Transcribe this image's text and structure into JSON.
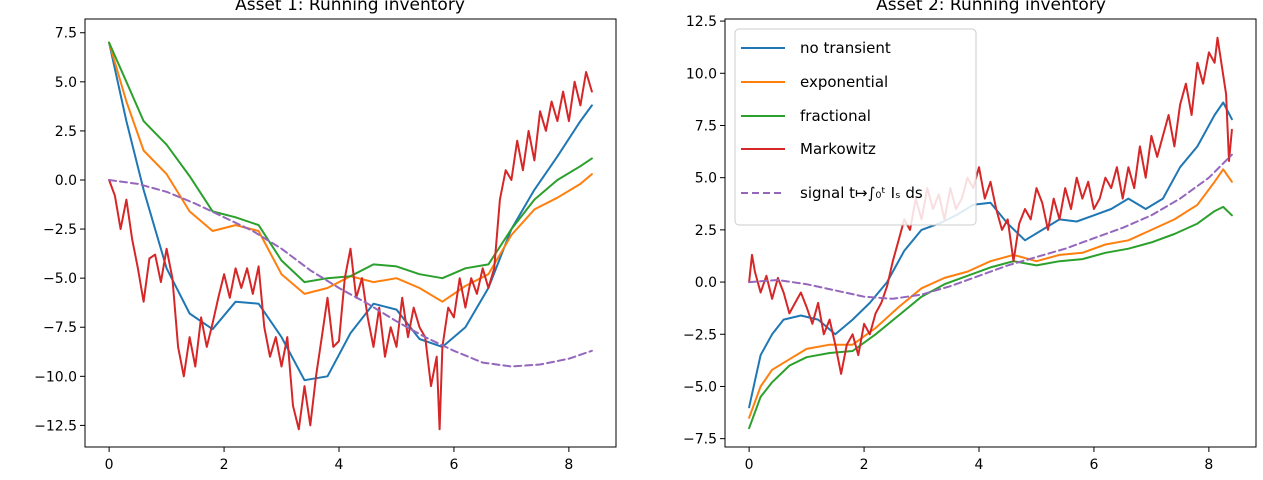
{
  "colors": {
    "no_transient": "#1f77b4",
    "exponential": "#ff7f0e",
    "fractional": "#2ca02c",
    "markowitz": "#d62728",
    "signal": "#9467bd"
  },
  "chart_data": [
    {
      "type": "line",
      "title": "Asset 1: Running inventory",
      "xlim": [
        -0.42,
        8.82
      ],
      "ylim": [
        -13.6,
        8.2
      ],
      "xticks": [
        0,
        2,
        4,
        6,
        8
      ],
      "xtick_labels": [
        "0",
        "2",
        "4",
        "6",
        "8"
      ],
      "yticks": [
        7.5,
        5.0,
        2.5,
        0.0,
        -2.5,
        -5.0,
        -7.5,
        -10.0,
        -12.5
      ],
      "ytick_labels": [
        "7.5",
        "5.0",
        "2.5",
        "0.0",
        "−2.5",
        "−5.0",
        "−7.5",
        "−10.0",
        "−12.5"
      ],
      "series": [
        {
          "name": "no transient",
          "color_key": "no_transient",
          "dashed": false,
          "x": [
            0,
            0.3,
            0.6,
            1.0,
            1.4,
            1.8,
            2.2,
            2.6,
            3.0,
            3.4,
            3.8,
            4.2,
            4.6,
            5.0,
            5.4,
            5.8,
            6.2,
            6.6,
            7.0,
            7.4,
            7.8,
            8.2,
            8.4
          ],
          "y": [
            7.0,
            3.0,
            -0.5,
            -4.5,
            -6.8,
            -7.6,
            -6.2,
            -6.3,
            -8.0,
            -10.2,
            -10.0,
            -7.8,
            -6.3,
            -6.6,
            -8.1,
            -8.5,
            -7.5,
            -5.5,
            -2.5,
            -0.5,
            1.2,
            3.0,
            3.8
          ]
        },
        {
          "name": "exponential",
          "color_key": "exponential",
          "dashed": false,
          "x": [
            0,
            0.3,
            0.6,
            1.0,
            1.4,
            1.8,
            2.2,
            2.6,
            3.0,
            3.4,
            3.8,
            4.2,
            4.6,
            5.0,
            5.4,
            5.8,
            6.2,
            6.6,
            7.0,
            7.4,
            7.8,
            8.2,
            8.4
          ],
          "y": [
            7.0,
            4.0,
            1.5,
            0.3,
            -1.6,
            -2.6,
            -2.3,
            -2.6,
            -4.8,
            -5.8,
            -5.5,
            -4.9,
            -5.2,
            -5.0,
            -5.5,
            -6.2,
            -5.4,
            -4.8,
            -2.8,
            -1.5,
            -0.9,
            -0.2,
            0.3
          ]
        },
        {
          "name": "fractional",
          "color_key": "fractional",
          "dashed": false,
          "x": [
            0,
            0.3,
            0.6,
            1.0,
            1.4,
            1.8,
            2.2,
            2.6,
            3.0,
            3.4,
            3.8,
            4.2,
            4.6,
            5.0,
            5.4,
            5.8,
            6.2,
            6.6,
            7.0,
            7.4,
            7.8,
            8.2,
            8.4
          ],
          "y": [
            7.0,
            5.0,
            3.0,
            1.8,
            0.2,
            -1.6,
            -1.9,
            -2.3,
            -4.1,
            -5.2,
            -5.0,
            -4.9,
            -4.3,
            -4.4,
            -4.8,
            -5.0,
            -4.5,
            -4.3,
            -2.5,
            -1.0,
            0.0,
            0.7,
            1.1
          ]
        },
        {
          "name": "Markowitz",
          "color_key": "markowitz",
          "dashed": false,
          "x": [
            0,
            0.1,
            0.2,
            0.3,
            0.4,
            0.5,
            0.6,
            0.7,
            0.8,
            0.9,
            1.0,
            1.1,
            1.2,
            1.3,
            1.4,
            1.5,
            1.6,
            1.7,
            1.8,
            1.9,
            2.0,
            2.1,
            2.2,
            2.3,
            2.4,
            2.5,
            2.6,
            2.7,
            2.8,
            2.9,
            3.0,
            3.1,
            3.2,
            3.3,
            3.4,
            3.5,
            3.6,
            3.7,
            3.8,
            3.9,
            4.0,
            4.1,
            4.2,
            4.3,
            4.4,
            4.5,
            4.6,
            4.7,
            4.8,
            4.9,
            5.0,
            5.1,
            5.2,
            5.3,
            5.4,
            5.5,
            5.6,
            5.7,
            5.75,
            5.8,
            5.9,
            6.0,
            6.1,
            6.2,
            6.3,
            6.4,
            6.5,
            6.6,
            6.7,
            6.8,
            6.9,
            7.0,
            7.1,
            7.2,
            7.3,
            7.4,
            7.5,
            7.6,
            7.7,
            7.8,
            7.9,
            8.0,
            8.1,
            8.2,
            8.3,
            8.4
          ],
          "y": [
            0.0,
            -0.8,
            -2.5,
            -1.0,
            -3.0,
            -4.5,
            -6.2,
            -4.0,
            -3.8,
            -5.2,
            -3.5,
            -5.0,
            -8.5,
            -10.0,
            -8.0,
            -9.5,
            -7.0,
            -8.5,
            -7.3,
            -6.0,
            -4.8,
            -6.0,
            -4.5,
            -5.5,
            -4.5,
            -5.8,
            -4.4,
            -7.5,
            -9.0,
            -8.0,
            -9.5,
            -8.0,
            -11.5,
            -12.7,
            -10.5,
            -12.5,
            -10.0,
            -8.0,
            -6.0,
            -8.5,
            -8.2,
            -5.0,
            -3.5,
            -6.0,
            -5.0,
            -7.0,
            -8.5,
            -6.5,
            -9.0,
            -7.5,
            -8.5,
            -6.0,
            -8.0,
            -6.5,
            -7.5,
            -8.0,
            -10.5,
            -9.0,
            -12.7,
            -8.5,
            -6.5,
            -7.0,
            -5.0,
            -6.5,
            -5.0,
            -5.8,
            -4.5,
            -5.5,
            -4.5,
            -1.0,
            0.5,
            0.0,
            2.0,
            0.5,
            2.5,
            1.0,
            3.5,
            2.5,
            4.0,
            3.0,
            4.5,
            3.0,
            5.0,
            3.8,
            5.5,
            4.5
          ]
        },
        {
          "name": "signal",
          "color_key": "signal",
          "dashed": true,
          "x": [
            0,
            0.5,
            1.0,
            1.5,
            2.0,
            2.5,
            3.0,
            3.5,
            4.0,
            4.5,
            5.0,
            5.5,
            6.0,
            6.5,
            7.0,
            7.5,
            8.0,
            8.4
          ],
          "y": [
            0.0,
            -0.2,
            -0.6,
            -1.2,
            -1.9,
            -2.6,
            -3.5,
            -4.6,
            -5.5,
            -6.3,
            -7.2,
            -8.0,
            -8.7,
            -9.3,
            -9.5,
            -9.4,
            -9.1,
            -8.7
          ]
        }
      ]
    },
    {
      "type": "line",
      "title": "Asset 2: Running inventory",
      "xlim": [
        -0.42,
        8.82
      ],
      "ylim": [
        -7.9,
        12.6
      ],
      "xticks": [
        0,
        2,
        4,
        6,
        8
      ],
      "xtick_labels": [
        "0",
        "2",
        "4",
        "6",
        "8"
      ],
      "yticks": [
        12.5,
        10.0,
        7.5,
        5.0,
        2.5,
        0.0,
        -2.5,
        -5.0,
        -7.5
      ],
      "ytick_labels": [
        "12.5",
        "10.0",
        "7.5",
        "5.0",
        "2.5",
        "0.0",
        "−2.5",
        "−5.0",
        "−7.5"
      ],
      "legend": {
        "position": "upper-left",
        "entries": [
          {
            "label": "no transient",
            "color_key": "no_transient",
            "dashed": false
          },
          {
            "label": "exponential",
            "color_key": "exponential",
            "dashed": false
          },
          {
            "label": "fractional",
            "color_key": "fractional",
            "dashed": false
          },
          {
            "label": "Markowitz",
            "color_key": "markowitz",
            "dashed": false
          },
          {
            "label": "signal t↦∫₀ᵗ Iₛ ds",
            "color_key": "signal",
            "dashed": true
          }
        ]
      },
      "series": [
        {
          "name": "no transient",
          "color_key": "no_transient",
          "dashed": false,
          "x": [
            0,
            0.2,
            0.4,
            0.6,
            0.9,
            1.2,
            1.5,
            1.8,
            2.1,
            2.4,
            2.7,
            3.0,
            3.3,
            3.6,
            3.9,
            4.2,
            4.5,
            4.8,
            5.1,
            5.4,
            5.7,
            6.0,
            6.3,
            6.6,
            6.9,
            7.2,
            7.5,
            7.8,
            8.1,
            8.25,
            8.4
          ],
          "y": [
            -6.0,
            -3.5,
            -2.5,
            -1.8,
            -1.6,
            -1.8,
            -2.5,
            -1.8,
            -1.0,
            0.0,
            1.5,
            2.5,
            2.8,
            3.2,
            3.7,
            3.8,
            2.8,
            2.0,
            2.5,
            3.0,
            2.9,
            3.2,
            3.5,
            4.0,
            3.5,
            4.0,
            5.5,
            6.5,
            8.0,
            8.6,
            7.8
          ]
        },
        {
          "name": "exponential",
          "color_key": "exponential",
          "dashed": false,
          "x": [
            0,
            0.2,
            0.4,
            0.7,
            1.0,
            1.4,
            1.8,
            2.2,
            2.6,
            3.0,
            3.4,
            3.8,
            4.2,
            4.6,
            5.0,
            5.4,
            5.8,
            6.2,
            6.6,
            7.0,
            7.4,
            7.8,
            8.1,
            8.25,
            8.4
          ],
          "y": [
            -6.5,
            -5.0,
            -4.2,
            -3.7,
            -3.2,
            -3.0,
            -3.0,
            -2.2,
            -1.2,
            -0.3,
            0.2,
            0.5,
            1.0,
            1.3,
            1.0,
            1.3,
            1.4,
            1.8,
            2.0,
            2.5,
            3.0,
            3.7,
            4.8,
            5.4,
            4.8
          ]
        },
        {
          "name": "fractional",
          "color_key": "fractional",
          "dashed": false,
          "x": [
            0,
            0.2,
            0.4,
            0.7,
            1.0,
            1.4,
            1.8,
            2.2,
            2.6,
            3.0,
            3.4,
            3.8,
            4.2,
            4.6,
            5.0,
            5.4,
            5.8,
            6.2,
            6.6,
            7.0,
            7.4,
            7.8,
            8.1,
            8.25,
            8.4
          ],
          "y": [
            -7.0,
            -5.5,
            -4.8,
            -4.0,
            -3.6,
            -3.4,
            -3.3,
            -2.5,
            -1.6,
            -0.7,
            -0.1,
            0.3,
            0.7,
            1.0,
            0.8,
            1.0,
            1.1,
            1.4,
            1.6,
            1.9,
            2.3,
            2.8,
            3.4,
            3.6,
            3.2
          ]
        },
        {
          "name": "Markowitz",
          "color_key": "markowitz",
          "dashed": false,
          "x": [
            0,
            0.05,
            0.1,
            0.2,
            0.3,
            0.4,
            0.5,
            0.6,
            0.7,
            0.8,
            0.9,
            1.0,
            1.1,
            1.2,
            1.3,
            1.4,
            1.5,
            1.6,
            1.7,
            1.8,
            1.9,
            2.0,
            2.1,
            2.2,
            2.3,
            2.4,
            2.5,
            2.6,
            2.7,
            2.8,
            2.9,
            3.0,
            3.1,
            3.2,
            3.3,
            3.4,
            3.5,
            3.6,
            3.7,
            3.8,
            3.9,
            4.0,
            4.1,
            4.2,
            4.3,
            4.4,
            4.5,
            4.6,
            4.7,
            4.8,
            4.9,
            5.0,
            5.1,
            5.2,
            5.3,
            5.4,
            5.5,
            5.6,
            5.7,
            5.8,
            5.9,
            6.0,
            6.1,
            6.2,
            6.3,
            6.4,
            6.5,
            6.6,
            6.7,
            6.8,
            6.9,
            7.0,
            7.1,
            7.2,
            7.3,
            7.4,
            7.5,
            7.6,
            7.7,
            7.8,
            7.9,
            8.0,
            8.1,
            8.15,
            8.2,
            8.3,
            8.35,
            8.4
          ],
          "y": [
            0.0,
            1.3,
            0.5,
            -0.5,
            0.3,
            -0.8,
            0.2,
            -0.5,
            -1.5,
            -1.0,
            -0.5,
            -1.2,
            -2.0,
            -1.0,
            -2.5,
            -1.8,
            -3.0,
            -4.4,
            -3.0,
            -2.5,
            -3.5,
            -2.0,
            -2.5,
            -1.5,
            -1.0,
            -0.2,
            1.0,
            2.0,
            3.0,
            2.5,
            4.0,
            3.0,
            4.5,
            3.5,
            4.2,
            3.0,
            4.5,
            3.5,
            4.0,
            5.0,
            4.5,
            5.5,
            4.0,
            4.8,
            3.5,
            2.5,
            3.0,
            1.0,
            2.8,
            3.5,
            3.0,
            4.5,
            3.8,
            2.5,
            4.0,
            3.0,
            4.5,
            3.5,
            5.0,
            4.0,
            4.8,
            3.5,
            4.0,
            5.0,
            4.5,
            5.5,
            4.0,
            5.5,
            4.5,
            6.5,
            5.0,
            7.0,
            6.0,
            7.0,
            8.0,
            6.5,
            8.5,
            9.5,
            8.0,
            10.5,
            9.5,
            11.0,
            10.5,
            11.7,
            10.8,
            9.0,
            5.8,
            7.3
          ]
        },
        {
          "name": "signal",
          "color_key": "signal",
          "dashed": true,
          "x": [
            0,
            0.5,
            1.0,
            1.5,
            2.0,
            2.5,
            3.0,
            3.5,
            4.0,
            4.5,
            5.0,
            5.5,
            6.0,
            6.5,
            7.0,
            7.5,
            8.0,
            8.4
          ],
          "y": [
            0.0,
            0.1,
            -0.1,
            -0.4,
            -0.7,
            -0.8,
            -0.6,
            -0.2,
            0.3,
            0.8,
            1.2,
            1.6,
            2.1,
            2.6,
            3.2,
            4.0,
            5.0,
            6.1
          ]
        }
      ]
    }
  ]
}
